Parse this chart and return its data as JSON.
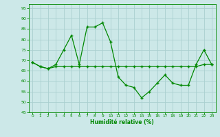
{
  "x": [
    0,
    1,
    2,
    3,
    4,
    5,
    6,
    7,
    8,
    9,
    10,
    11,
    12,
    13,
    14,
    15,
    16,
    17,
    18,
    19,
    20,
    21,
    22,
    23
  ],
  "y_line1": [
    69,
    67,
    66,
    68,
    75,
    82,
    68,
    86,
    86,
    88,
    79,
    62,
    58,
    57,
    52,
    55,
    59,
    63,
    59,
    58,
    58,
    68,
    75,
    68
  ],
  "y_line2": [
    69,
    67,
    66,
    67,
    67,
    67,
    67,
    67,
    67,
    67,
    67,
    67,
    67,
    67,
    67,
    67,
    67,
    67,
    67,
    67,
    67,
    67,
    68,
    68
  ],
  "background_color": "#cce8e8",
  "grid_color": "#aacfcf",
  "line_color": "#008800",
  "xlabel": "Humidité relative (%)",
  "xlabel_color": "#008800",
  "ylim": [
    45,
    97
  ],
  "xlim": [
    -0.5,
    23.5
  ],
  "yticks": [
    45,
    50,
    55,
    60,
    65,
    70,
    75,
    80,
    85,
    90,
    95
  ],
  "xticks": [
    0,
    1,
    2,
    3,
    4,
    5,
    6,
    7,
    8,
    9,
    10,
    11,
    12,
    13,
    14,
    15,
    16,
    17,
    18,
    19,
    20,
    21,
    22,
    23
  ],
  "tick_color": "#008800",
  "marker": "+",
  "markersize": 3.0,
  "linewidth": 0.9,
  "figsize": [
    3.2,
    2.0
  ],
  "dpi": 100
}
